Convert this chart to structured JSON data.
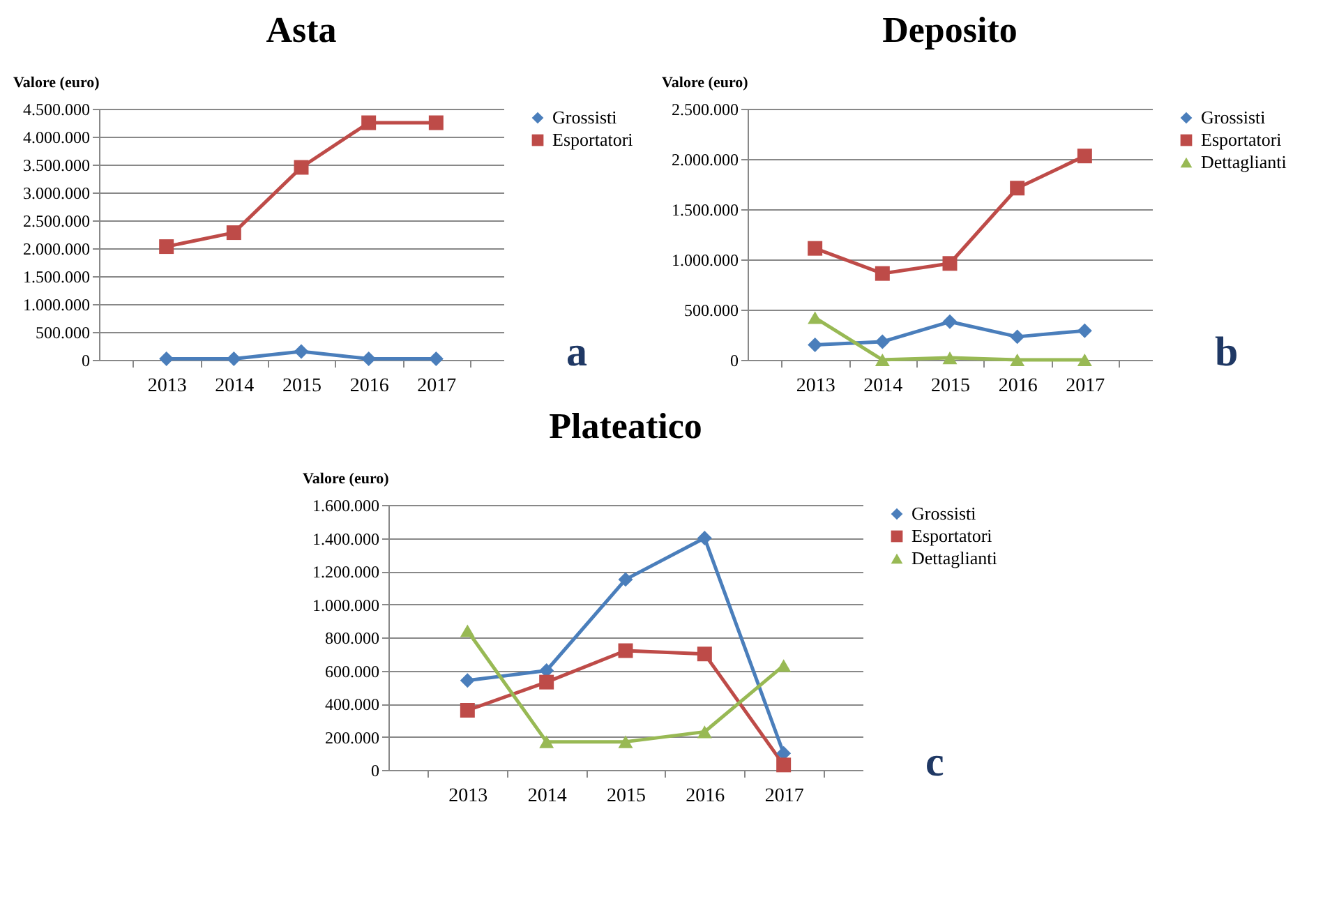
{
  "chart_data": [
    {
      "type": "line",
      "title": "Asta",
      "ylabel": "Valore (euro)",
      "categories": [
        "2013",
        "2014",
        "2015",
        "2016",
        "2017"
      ],
      "series": [
        {
          "name": "Grossisti",
          "color": "#4a7ebb",
          "marker": "diamond",
          "values": [
            20000,
            20000,
            150000,
            20000,
            20000
          ]
        },
        {
          "name": "Esportatori",
          "color": "#be4b48",
          "marker": "square",
          "values": [
            2030000,
            2280000,
            3450000,
            4250000,
            4250000
          ]
        }
      ],
      "ylim": [
        0,
        4500000
      ],
      "yticks": [
        {
          "value": 0,
          "label": "0"
        },
        {
          "value": 500000,
          "label": "500.000"
        },
        {
          "value": 1000000,
          "label": "1.000.000"
        },
        {
          "value": 1500000,
          "label": "1.500.000"
        },
        {
          "value": 2000000,
          "label": "2.000.000"
        },
        {
          "value": 2500000,
          "label": "2.500.000"
        },
        {
          "value": 3000000,
          "label": "3.000.000"
        },
        {
          "value": 3500000,
          "label": "3.500.000"
        },
        {
          "value": 4000000,
          "label": "4.000.000"
        },
        {
          "value": 4500000,
          "label": "4.500.000"
        }
      ],
      "grid": "y",
      "legend": "right",
      "annotations": [
        "a"
      ]
    },
    {
      "type": "line",
      "title": "Deposito",
      "ylabel": "Valore (euro)",
      "categories": [
        "2013",
        "2014",
        "2015",
        "2016",
        "2017"
      ],
      "series": [
        {
          "name": "Grossisti",
          "color": "#4a7ebb",
          "marker": "diamond",
          "values": [
            150000,
            180000,
            380000,
            230000,
            290000
          ]
        },
        {
          "name": "Esportatori",
          "color": "#be4b48",
          "marker": "square",
          "values": [
            1110000,
            860000,
            960000,
            1710000,
            2030000
          ]
        },
        {
          "name": "Dettaglianti",
          "color": "#98b954",
          "marker": "triangle",
          "values": [
            420000,
            0,
            20000,
            0,
            0
          ]
        }
      ],
      "ylim": [
        0,
        2500000
      ],
      "yticks": [
        {
          "value": 0,
          "label": "0"
        },
        {
          "value": 500000,
          "label": "500.000"
        },
        {
          "value": 1000000,
          "label": "1.000.000"
        },
        {
          "value": 1500000,
          "label": "1.500.000"
        },
        {
          "value": 2000000,
          "label": "2.000.000"
        },
        {
          "value": 2500000,
          "label": "2.500.000"
        }
      ],
      "grid": "y",
      "legend": "right",
      "annotations": [
        "b"
      ]
    },
    {
      "type": "line",
      "title": "Plateatico",
      "ylabel": "Valore (euro)",
      "categories": [
        "2013",
        "2014",
        "2015",
        "2016",
        "2017"
      ],
      "series": [
        {
          "name": "Grossisti",
          "color": "#4a7ebb",
          "marker": "diamond",
          "values": [
            540000,
            600000,
            1150000,
            1400000,
            100000
          ]
        },
        {
          "name": "Esportatori",
          "color": "#be4b48",
          "marker": "square",
          "values": [
            360000,
            530000,
            720000,
            700000,
            30000
          ]
        },
        {
          "name": "Dettaglianti",
          "color": "#98b954",
          "marker": "triangle",
          "values": [
            840000,
            170000,
            170000,
            230000,
            630000
          ]
        }
      ],
      "ylim": [
        0,
        1600000
      ],
      "yticks": [
        {
          "value": 0,
          "label": "0"
        },
        {
          "value": 200000,
          "label": "200.000"
        },
        {
          "value": 400000,
          "label": "400.000"
        },
        {
          "value": 600000,
          "label": "600.000"
        },
        {
          "value": 800000,
          "label": "800.000"
        },
        {
          "value": 1000000,
          "label": "1.000.000"
        },
        {
          "value": 1200000,
          "label": "1.200.000"
        },
        {
          "value": 1400000,
          "label": "1.400.000"
        },
        {
          "value": 1600000,
          "label": "1.600.000"
        }
      ],
      "grid": "y",
      "legend": "right",
      "annotations": [
        "c"
      ]
    }
  ]
}
